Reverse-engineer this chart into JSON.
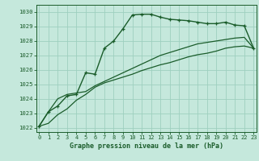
{
  "title": "Graphe pression niveau de la mer (hPa)",
  "background_color": "#c5e8dc",
  "grid_color": "#9ecfbf",
  "line_color": "#1a5c2a",
  "ylim": [
    1021.7,
    1030.5
  ],
  "yticks": [
    1022,
    1023,
    1024,
    1025,
    1026,
    1027,
    1028,
    1029,
    1030
  ],
  "xlim": [
    -0.3,
    23.3
  ],
  "xticks": [
    0,
    1,
    2,
    3,
    4,
    5,
    6,
    7,
    8,
    9,
    10,
    11,
    12,
    13,
    14,
    15,
    16,
    17,
    18,
    19,
    20,
    21,
    22,
    23
  ],
  "series1_y": [
    1022.1,
    1023.1,
    1023.5,
    1024.2,
    1024.3,
    1025.8,
    1025.7,
    1027.5,
    1028.0,
    1028.85,
    1029.8,
    1029.85,
    1029.85,
    1029.65,
    1029.5,
    1029.45,
    1029.4,
    1029.3,
    1029.2,
    1029.2,
    1029.3,
    1029.1,
    1029.05,
    1027.5
  ],
  "series2_y": [
    1022.1,
    1023.1,
    1024.0,
    1024.3,
    1024.4,
    1024.5,
    1024.9,
    1025.2,
    1025.5,
    1025.8,
    1026.1,
    1026.4,
    1026.7,
    1027.0,
    1027.2,
    1027.4,
    1027.6,
    1027.8,
    1027.9,
    1028.0,
    1028.1,
    1028.2,
    1028.25,
    1027.5
  ],
  "series3_y": [
    1022.1,
    1022.3,
    1022.9,
    1023.3,
    1023.9,
    1024.3,
    1024.8,
    1025.1,
    1025.3,
    1025.5,
    1025.7,
    1025.95,
    1026.15,
    1026.35,
    1026.5,
    1026.7,
    1026.9,
    1027.05,
    1027.15,
    1027.3,
    1027.5,
    1027.6,
    1027.65,
    1027.5
  ]
}
